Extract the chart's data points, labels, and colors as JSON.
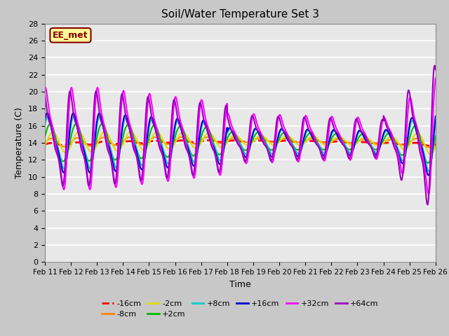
{
  "title": "Soil/Water Temperature Set 3",
  "xlabel": "Time",
  "ylabel": "Temperature (C)",
  "annotation": "EE_met",
  "ylim": [
    0,
    28
  ],
  "yticks": [
    0,
    2,
    4,
    6,
    8,
    10,
    12,
    14,
    16,
    18,
    20,
    22,
    24,
    26,
    28
  ],
  "xtick_labels": [
    "Feb 11",
    "Feb 12",
    "Feb 13",
    "Feb 14",
    "Feb 15",
    "Feb 16",
    "Feb 17",
    "Feb 18",
    "Feb 19",
    "Feb 20",
    "Feb 21",
    "Feb 22",
    "Feb 23",
    "Feb 24",
    "Feb 25",
    "Feb 26"
  ],
  "fig_bg": "#c8c8c8",
  "plot_bg": "#e8e8e8",
  "series": [
    {
      "label": "-16cm",
      "color": "#ff0000",
      "lw": 2.0,
      "dashed": true
    },
    {
      "label": "-8cm",
      "color": "#ff8800",
      "lw": 1.5,
      "dashed": false
    },
    {
      "label": "-2cm",
      "color": "#dddd00",
      "lw": 1.5,
      "dashed": false
    },
    {
      "label": "+2cm",
      "color": "#00bb00",
      "lw": 1.5,
      "dashed": false
    },
    {
      "label": "+8cm",
      "color": "#00cccc",
      "lw": 1.5,
      "dashed": false
    },
    {
      "label": "+16cm",
      "color": "#0000cc",
      "lw": 1.5,
      "dashed": false
    },
    {
      "label": "+32cm",
      "color": "#ff00ff",
      "lw": 1.5,
      "dashed": false
    },
    {
      "label": "+64cm",
      "color": "#9900bb",
      "lw": 1.5,
      "dashed": false
    }
  ],
  "legend_ncol": 6,
  "legend_rows": 2
}
